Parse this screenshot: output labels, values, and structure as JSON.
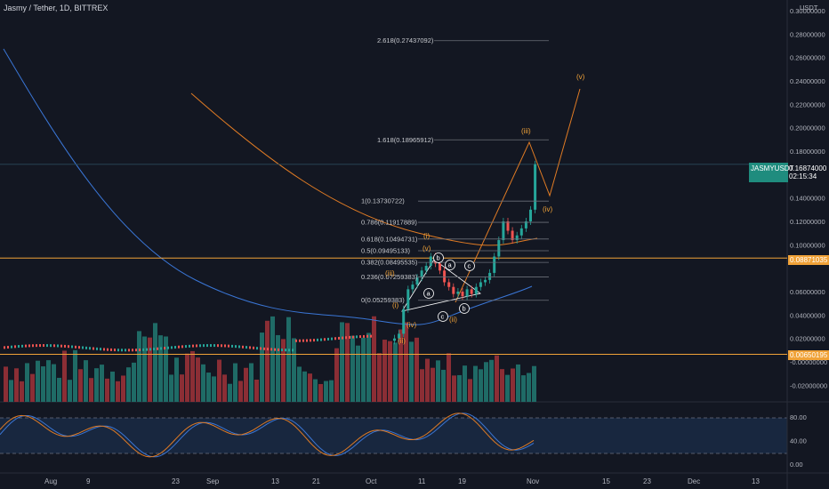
{
  "header": {
    "symbol_title": "Jasmy / Tether, 1D, BITTREX",
    "currency": "USDT"
  },
  "price_axis": {
    "labels": [
      "0.30000000",
      "0.28000000",
      "0.26000000",
      "0.24000000",
      "0.22000000",
      "0.20000000",
      "0.18000000",
      "0.14000000",
      "0.12000000",
      "0.10000000",
      "0.06000000",
      "0.04000000",
      "0.02000000",
      "-0.00000000",
      "-0.02000000"
    ]
  },
  "badges": {
    "ticker_label": "JASMYUSDT",
    "ticker_price": "0.16874000",
    "ticker_countdown": "02:15:34",
    "resistance_price": "0.08871035",
    "support_price": "0.00650195"
  },
  "fib_levels": [
    {
      "label": "2.618(0.27437092)",
      "price": 0.27437092
    },
    {
      "label": "1.618(0.18965912)",
      "price": 0.18965912
    },
    {
      "label": "1(0.13730722)",
      "price": 0.13730722
    },
    {
      "label": "0.786(0.11917889)",
      "price": 0.11917889
    },
    {
      "label": "0.618(0.10494731)",
      "price": 0.10494731
    },
    {
      "label": "0.5(0.09495133)",
      "price": 0.09495133
    },
    {
      "label": "0.382(0.08495535)",
      "price": 0.08495535
    },
    {
      "label": "0.236(0.07259383)",
      "price": 0.07259383
    },
    {
      "label": "0(0.05259383)",
      "price": 0.05259383
    }
  ],
  "wave_labels": {
    "orange": [
      "(i)",
      "(ii)",
      "(iii)",
      "(iv)",
      "(v)",
      "(i)",
      "(ii)",
      "(iii)",
      "(iv)",
      "(v)",
      "(iii)",
      "(iv)",
      "(v)"
    ],
    "white_circled": [
      "a",
      "b",
      "c",
      "a",
      "b",
      "c"
    ]
  },
  "oscillator": {
    "labels": [
      "80.00",
      "40.00",
      "0.00"
    ],
    "upper": 80,
    "lower": 20
  },
  "time_axis": {
    "labels": [
      "Aug",
      "9",
      "23",
      "Sep",
      "13",
      "21",
      "Oct",
      "11",
      "19",
      "Nov",
      "15",
      "23",
      "Dec",
      "13"
    ]
  },
  "chart_data": {
    "type": "candlestick",
    "title": "Jasmy / Tether, 1D, BITTREX",
    "currency": "USDT",
    "ylim": [
      -0.03,
      0.31
    ],
    "x": [
      "Aug",
      "9",
      "23",
      "Sep",
      "13",
      "21",
      "Oct",
      "11",
      "19",
      "Nov",
      "15",
      "23",
      "Dec",
      "13"
    ],
    "last_price": 0.16874,
    "horizontal_lines": [
      0.08871035,
      0.00650195
    ],
    "candles_recent": [
      {
        "o": 0.018,
        "c": 0.02
      },
      {
        "o": 0.02,
        "c": 0.024
      },
      {
        "o": 0.024,
        "c": 0.045
      },
      {
        "o": 0.045,
        "c": 0.062
      },
      {
        "o": 0.062,
        "c": 0.066
      },
      {
        "o": 0.066,
        "c": 0.072
      },
      {
        "o": 0.072,
        "c": 0.078
      },
      {
        "o": 0.078,
        "c": 0.082
      },
      {
        "o": 0.082,
        "c": 0.09
      },
      {
        "o": 0.09,
        "c": 0.084
      },
      {
        "o": 0.084,
        "c": 0.078
      },
      {
        "o": 0.078,
        "c": 0.068
      },
      {
        "o": 0.068,
        "c": 0.064
      },
      {
        "o": 0.064,
        "c": 0.058
      },
      {
        "o": 0.058,
        "c": 0.06
      },
      {
        "o": 0.06,
        "c": 0.056
      },
      {
        "o": 0.056,
        "c": 0.062
      },
      {
        "o": 0.062,
        "c": 0.058
      },
      {
        "o": 0.058,
        "c": 0.064
      },
      {
        "o": 0.064,
        "c": 0.068
      },
      {
        "o": 0.068,
        "c": 0.07
      },
      {
        "o": 0.07,
        "c": 0.076
      },
      {
        "o": 0.076,
        "c": 0.09
      },
      {
        "o": 0.09,
        "c": 0.104
      },
      {
        "o": 0.104,
        "c": 0.12
      },
      {
        "o": 0.12,
        "c": 0.112
      },
      {
        "o": 0.112,
        "c": 0.104
      },
      {
        "o": 0.104,
        "c": 0.108
      },
      {
        "o": 0.108,
        "c": 0.114
      },
      {
        "o": 0.114,
        "c": 0.12
      },
      {
        "o": 0.12,
        "c": 0.13
      },
      {
        "o": 0.13,
        "c": 0.16874
      }
    ]
  }
}
